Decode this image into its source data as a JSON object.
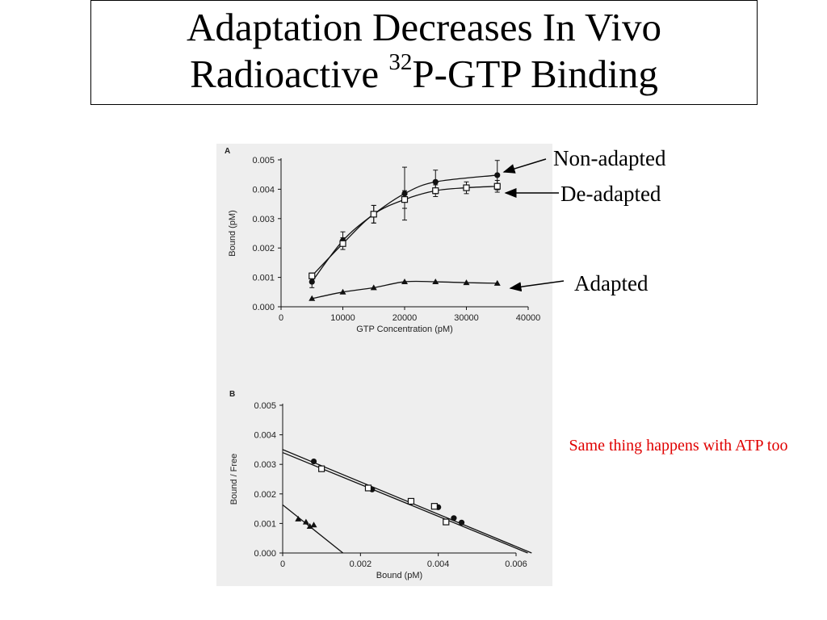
{
  "slide": {
    "title_line1": "Adaptation Decreases In Vivo",
    "title_line2_pre": "Radioactive ",
    "title_line2_sup": "32",
    "title_line2_post": "P-GTP Binding",
    "annotations": {
      "non_adapted": "Non-adapted",
      "de_adapted": "De-adapted",
      "adapted": "Adapted"
    },
    "note": "Same thing happens with ATP too"
  },
  "colors": {
    "text": "#000000",
    "note": "#e00000",
    "figure_bg": "#eeeeee"
  },
  "chart_data": [
    {
      "panel": "A",
      "type": "line",
      "xlabel": "GTP Concentration (pM)",
      "ylabel": "Bound (pM)",
      "xlim": [
        0,
        40000
      ],
      "ylim": [
        0,
        0.005
      ],
      "xticks": [
        0,
        10000,
        20000,
        30000,
        40000
      ],
      "yticks": [
        0.0,
        0.001,
        0.002,
        0.003,
        0.004,
        0.005
      ],
      "series": [
        {
          "name": "Non-adapted",
          "marker": "filled-circle",
          "x": [
            5000,
            10000,
            15000,
            20000,
            25000,
            35000
          ],
          "y": [
            0.00085,
            0.00225,
            0.00315,
            0.00385,
            0.00425,
            0.00448
          ],
          "err": [
            0.0002,
            0.0003,
            0.0003,
            0.0009,
            0.0004,
            0.0005
          ]
        },
        {
          "name": "De-adapted",
          "marker": "open-square",
          "x": [
            5000,
            10000,
            15000,
            20000,
            25000,
            30000,
            35000
          ],
          "y": [
            0.00105,
            0.00215,
            0.00315,
            0.00365,
            0.00395,
            0.00405,
            0.0041
          ],
          "err": [
            0.0001,
            0.0002,
            0.0003,
            0.0003,
            0.0002,
            0.0002,
            0.0002
          ]
        },
        {
          "name": "Adapted",
          "marker": "filled-triangle",
          "x": [
            5000,
            10000,
            15000,
            20000,
            25000,
            30000,
            35000
          ],
          "y": [
            0.00028,
            0.0005,
            0.00065,
            0.00085,
            0.00085,
            0.00082,
            0.0008
          ],
          "err": [
            0,
            0,
            0,
            0,
            0,
            0,
            0
          ]
        }
      ]
    },
    {
      "panel": "B",
      "type": "scatter",
      "xlabel": "Bound (pM)",
      "ylabel": "Bound / Free",
      "xlim": [
        0,
        0.006
      ],
      "ylim": [
        0,
        0.005
      ],
      "xticks": [
        0,
        0.002,
        0.004,
        0.006
      ],
      "yticks": [
        0.0,
        0.001,
        0.002,
        0.003,
        0.004,
        0.005
      ],
      "series": [
        {
          "name": "Non-adapted",
          "marker": "filled-circle",
          "x": [
            0.0008,
            0.0023,
            0.0033,
            0.004,
            0.0044,
            0.0046
          ],
          "y": [
            0.0031,
            0.00215,
            0.00172,
            0.00155,
            0.00118,
            0.00103
          ],
          "fit": [
            [
              0,
              0.0035
            ],
            [
              0.0064,
              0.0
            ]
          ]
        },
        {
          "name": "De-adapted",
          "marker": "open-square",
          "x": [
            0.001,
            0.0022,
            0.0033,
            0.0039,
            0.0042
          ],
          "y": [
            0.00285,
            0.0022,
            0.00175,
            0.00158,
            0.00105
          ],
          "fit": [
            [
              0,
              0.0034
            ],
            [
              0.0063,
              0.0
            ]
          ]
        },
        {
          "name": "Adapted",
          "marker": "filled-triangle",
          "x": [
            0.0004,
            0.0006,
            0.0007,
            0.0008
          ],
          "y": [
            0.00115,
            0.00105,
            0.0009,
            0.00095
          ],
          "fit": [
            [
              0,
              0.00163
            ],
            [
              0.00155,
              0.0
            ]
          ]
        }
      ]
    }
  ]
}
